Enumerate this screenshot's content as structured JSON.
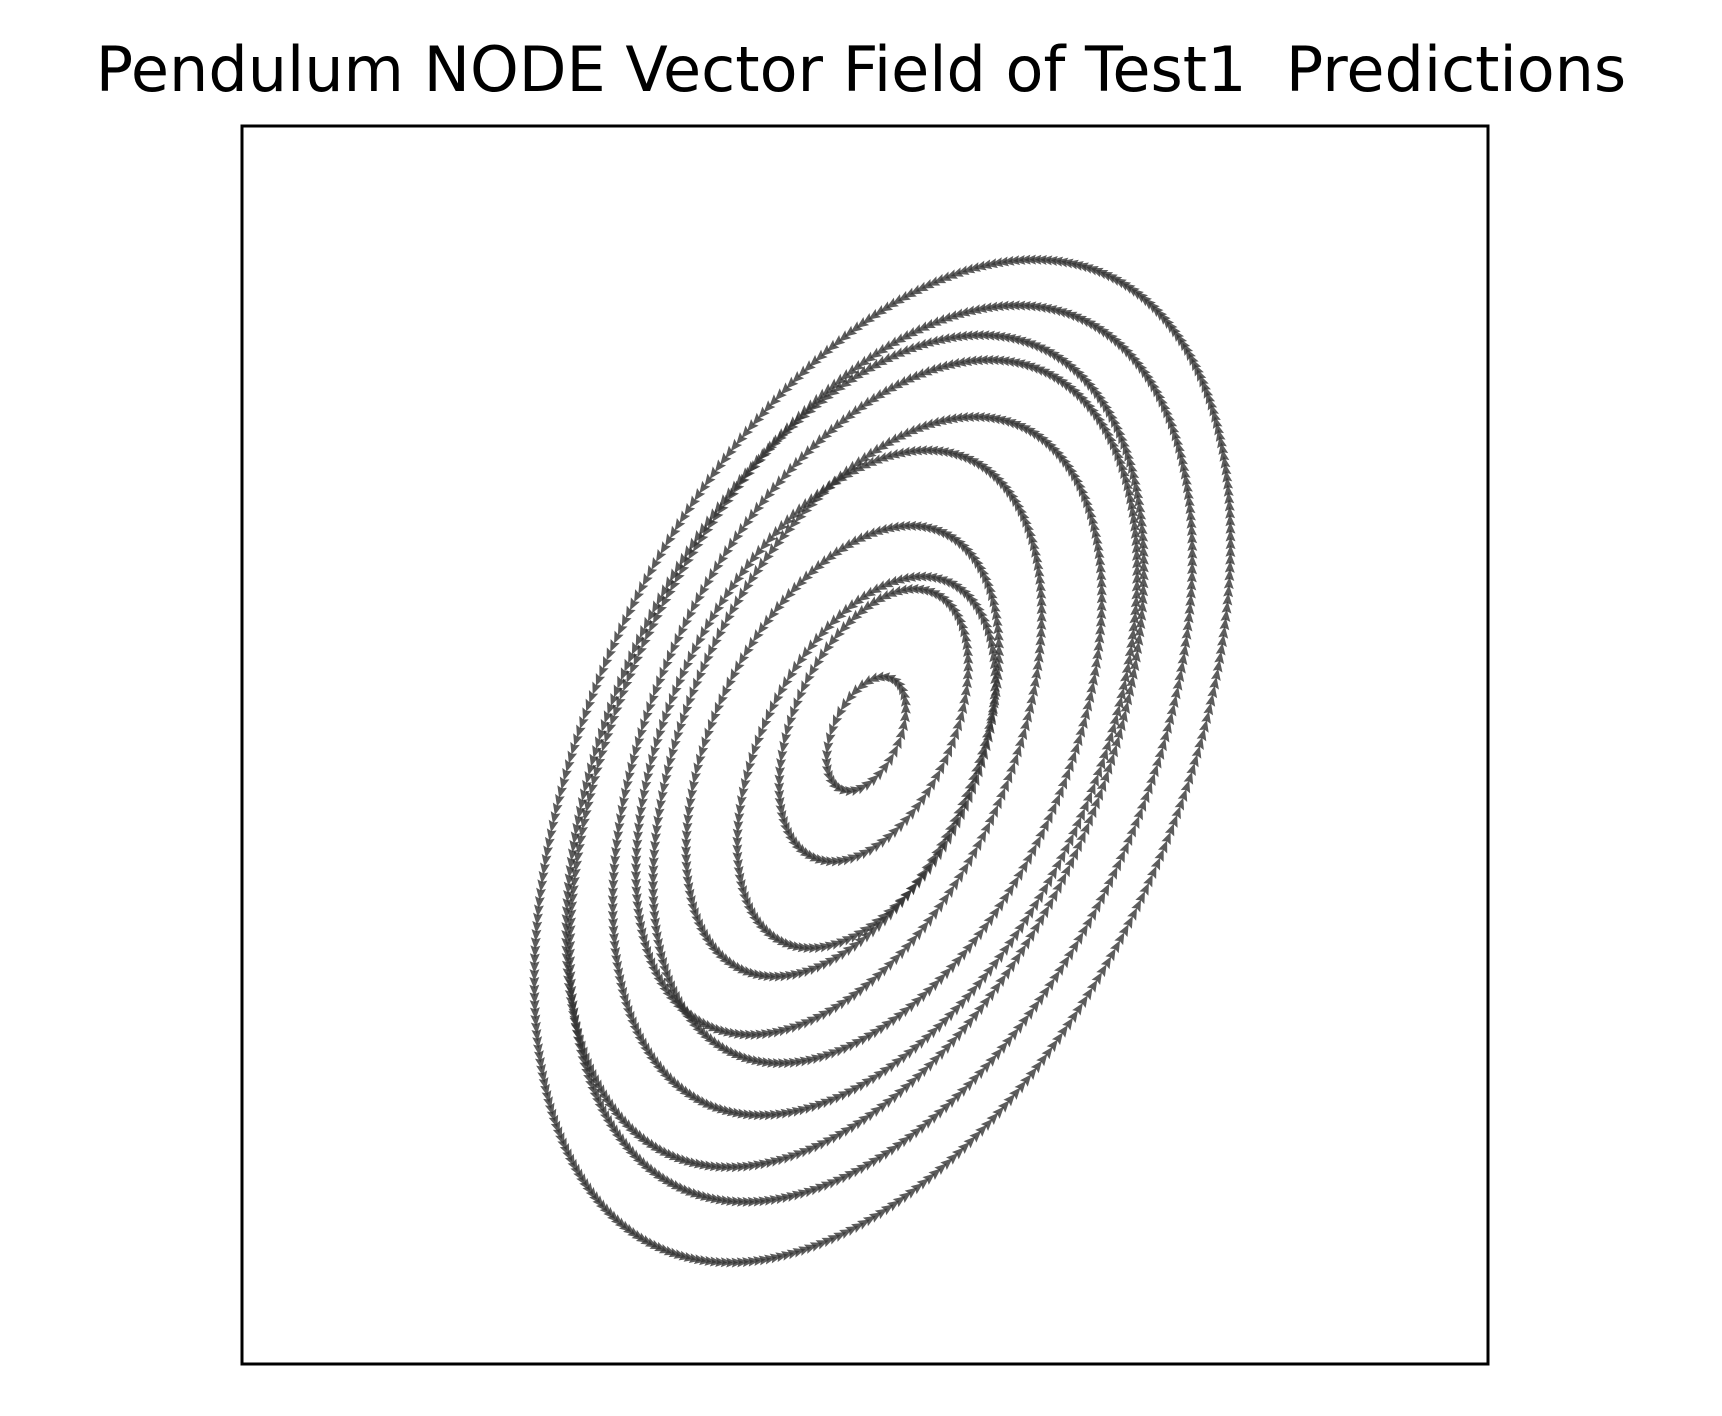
{
  "chart_data": {
    "type": "scatter",
    "title": "Pendulum NODE Vector Field of Test1  Predictions",
    "xlabel": "",
    "ylabel": "",
    "axes_visible": false,
    "grid": false,
    "legend": "none",
    "marker": "quiver-arrow",
    "arrow_color": "#333333",
    "arrow_opacity": 0.8,
    "frame_color": "#000000",
    "xlim": [
      0,
      100
    ],
    "ylim": [
      0,
      100
    ],
    "series": [
      {
        "loops": [
          {
            "cx": 51.4,
            "cy": 48.7,
            "r": 40.5
          },
          {
            "cx": 51.3,
            "cy": 49.3,
            "r": 36.2
          },
          {
            "cx": 49.2,
            "cy": 49.5,
            "r": 33.6
          },
          {
            "cx": 50.8,
            "cy": 50.6,
            "r": 30.5
          },
          {
            "cx": 51.0,
            "cy": 50.4,
            "r": 26.1
          },
          {
            "cx": 47.9,
            "cy": 50.2,
            "r": 23.6
          },
          {
            "cx": 48.2,
            "cy": 49.5,
            "r": 18.2
          },
          {
            "cx": 50.1,
            "cy": 48.6,
            "r": 15.0
          },
          {
            "cx": 50.7,
            "cy": 51.6,
            "r": 11.0
          },
          {
            "cx": 50.1,
            "cy": 50.9,
            "r": 4.6
          }
        ]
      }
    ]
  }
}
